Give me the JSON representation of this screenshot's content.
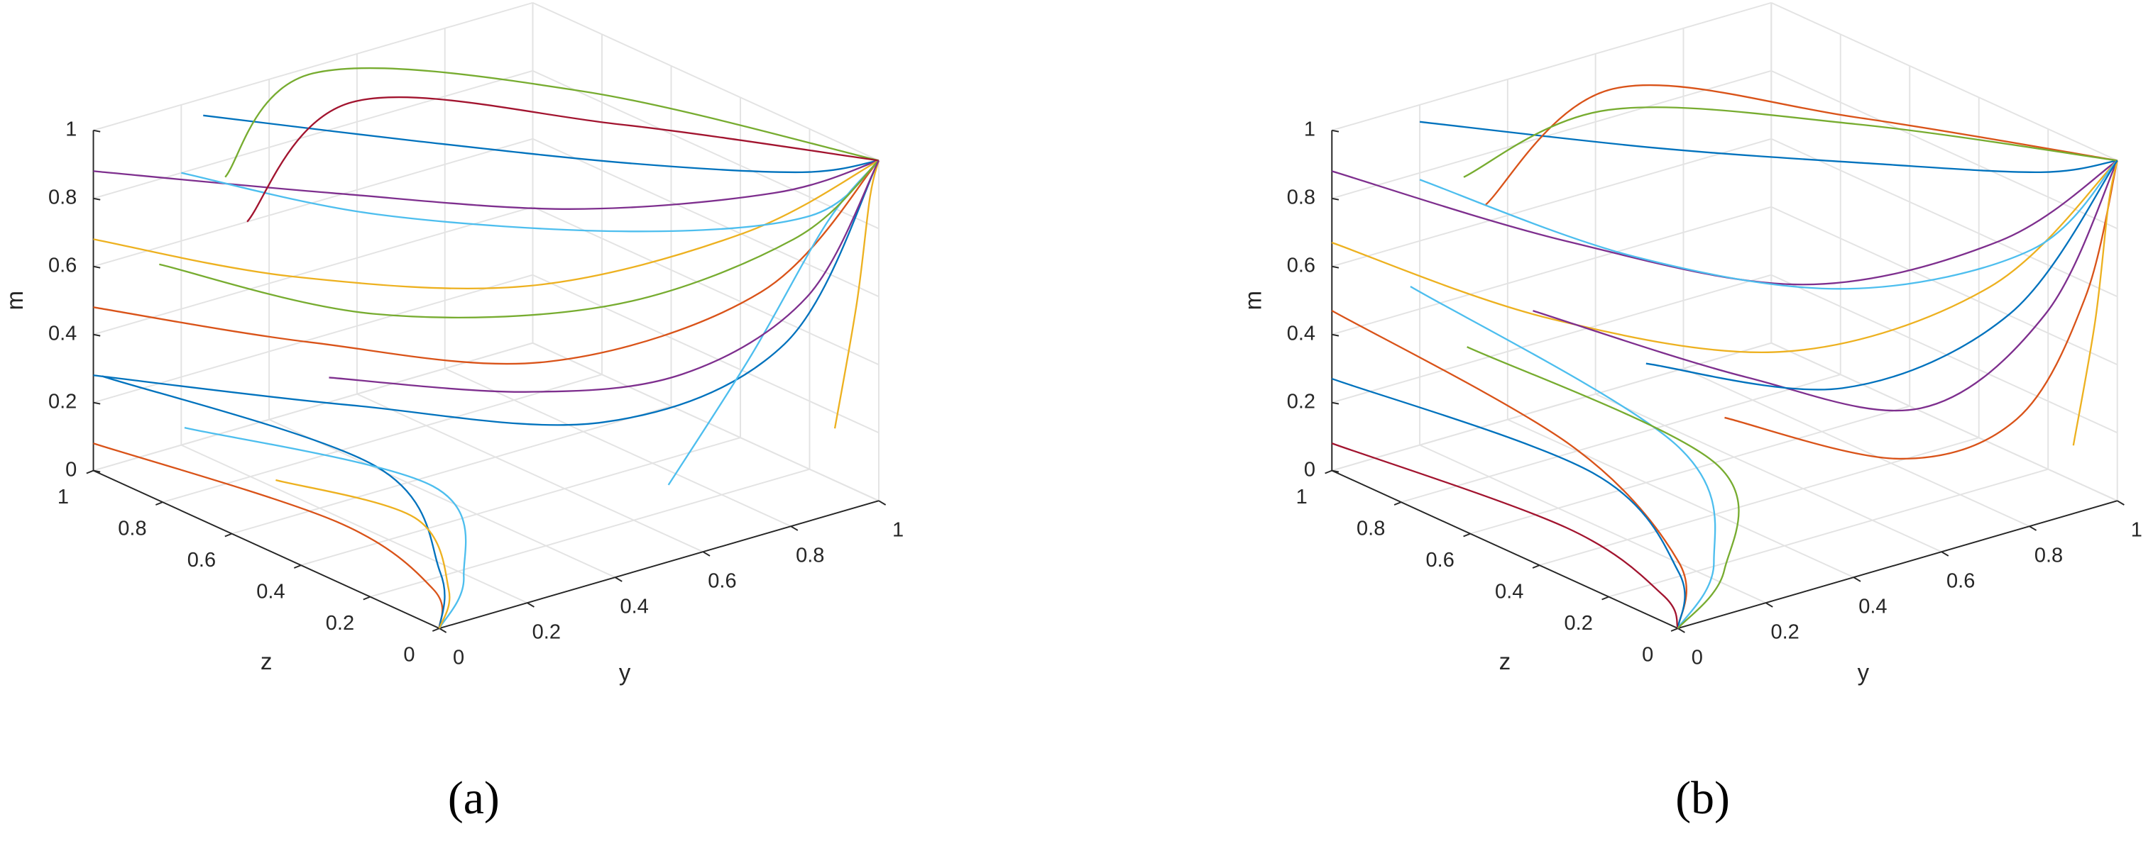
{
  "chart_data": [
    {
      "type": "line3d",
      "caption": "(a)",
      "grid": true,
      "ylabel": "y",
      "ylim": [
        0,
        1
      ],
      "yticks": [
        0,
        0.2,
        0.4,
        0.6,
        0.8,
        1
      ],
      "zlabel": "z",
      "zlim": [
        0,
        1
      ],
      "zticks": [
        0,
        0.2,
        0.4,
        0.6,
        0.8,
        1
      ],
      "mlabel": "m",
      "mlim": [
        0,
        1
      ],
      "mticks": [
        0,
        0.2,
        0.4,
        0.6,
        0.8,
        1
      ],
      "series": [
        {
          "color": "#0072BD",
          "y": [
            0.25,
            0.5,
            0.75,
            0.92,
            1
          ],
          "z": [
            1,
            0.7,
            0.4,
            0.12,
            0
          ],
          "m": [
            0.95,
            0.92,
            0.9,
            0.94,
            1
          ]
        },
        {
          "color": "#7E2F8E",
          "y": [
            0,
            0.35,
            0.65,
            0.88,
            1
          ],
          "z": [
            1,
            0.75,
            0.45,
            0.15,
            0
          ],
          "m": [
            0.88,
            0.8,
            0.78,
            0.88,
            1
          ]
        },
        {
          "color": "#EDB120",
          "y": [
            0,
            0.3,
            0.6,
            0.85,
            1
          ],
          "z": [
            1,
            0.8,
            0.5,
            0.2,
            0
          ],
          "m": [
            0.68,
            0.55,
            0.55,
            0.75,
            1
          ]
        },
        {
          "color": "#D95319",
          "y": [
            0,
            0.3,
            0.6,
            0.85,
            1
          ],
          "z": [
            1,
            0.75,
            0.45,
            0.15,
            0
          ],
          "m": [
            0.48,
            0.38,
            0.35,
            0.6,
            1
          ]
        },
        {
          "color": "#0072BD",
          "y": [
            0,
            0.35,
            0.65,
            0.88,
            1
          ],
          "z": [
            1,
            0.7,
            0.35,
            0.12,
            0
          ],
          "m": [
            0.28,
            0.2,
            0.2,
            0.45,
            1
          ]
        },
        {
          "color": "#4DBEEE",
          "y": [
            0.2,
            0.45,
            0.75,
            0.92,
            1
          ],
          "z": [
            1,
            0.75,
            0.4,
            0.1,
            0
          ],
          "m": [
            0.8,
            0.7,
            0.7,
            0.82,
            1
          ]
        },
        {
          "color": "#77AC30",
          "y": [
            0.3,
            0.5,
            0.8,
            1
          ],
          "z": [
            1,
            1,
            0.6,
            0
          ],
          "m": [
            0.75,
            0.98,
            1,
            1
          ]
        },
        {
          "color": "#A2142F",
          "y": [
            0.35,
            0.55,
            0.8,
            1
          ],
          "z": [
            1,
            0.95,
            0.5,
            0
          ],
          "m": [
            0.6,
            0.9,
            0.95,
            1
          ]
        },
        {
          "color": "#D95319",
          "y": [
            0,
            0.12,
            0.08,
            0
          ],
          "z": [
            1,
            0.45,
            0.12,
            0
          ],
          "m": [
            0.08,
            0.06,
            0.03,
            0
          ]
        },
        {
          "color": "#0072BD",
          "y": [
            0.02,
            0.25,
            0.12,
            0
          ],
          "z": [
            1,
            0.5,
            0.15,
            0
          ],
          "m": [
            0.27,
            0.15,
            0.05,
            0
          ]
        },
        {
          "color": "#4DBEEE",
          "y": [
            0.05,
            0.3,
            0.15,
            0
          ],
          "z": [
            0.8,
            0.4,
            0.12,
            0
          ],
          "m": [
            0.2,
            0.12,
            0.04,
            0
          ]
        },
        {
          "color": "#EDB120",
          "y": [
            0.1,
            0.22,
            0.1,
            0
          ],
          "z": [
            0.6,
            0.35,
            0.1,
            0
          ],
          "m": [
            0.12,
            0.08,
            0.03,
            0
          ]
        },
        {
          "color": "#4DBEEE",
          "y": [
            0.6,
            0.75,
            0.9,
            1
          ],
          "z": [
            0.1,
            0.05,
            0.02,
            0
          ],
          "m": [
            0.15,
            0.5,
            0.85,
            1
          ]
        },
        {
          "color": "#EDB120",
          "y": [
            0.9,
            0.95,
            0.98,
            1
          ],
          "z": [
            0,
            0,
            0,
            0
          ],
          "m": [
            0.25,
            0.6,
            0.9,
            1
          ]
        },
        {
          "color": "#77AC30",
          "y": [
            0.15,
            0.4,
            0.7,
            0.9,
            1
          ],
          "z": [
            1,
            0.7,
            0.4,
            0.12,
            0
          ],
          "m": [
            0.55,
            0.45,
            0.5,
            0.75,
            1
          ]
        },
        {
          "color": "#7E2F8E",
          "y": [
            0.3,
            0.55,
            0.75,
            0.9,
            1
          ],
          "z": [
            0.7,
            0.45,
            0.25,
            0.08,
            0
          ],
          "m": [
            0.3,
            0.28,
            0.35,
            0.6,
            1
          ]
        }
      ]
    },
    {
      "type": "line3d",
      "caption": "(b)",
      "grid": true,
      "ylabel": "y",
      "ylim": [
        0,
        1
      ],
      "yticks": [
        0,
        0.2,
        0.4,
        0.6,
        0.8,
        1
      ],
      "zlabel": "z",
      "zlim": [
        0,
        1
      ],
      "zticks": [
        0,
        0.2,
        0.4,
        0.6,
        0.8,
        1
      ],
      "mlabel": "m",
      "mlim": [
        0,
        1
      ],
      "mticks": [
        0,
        0.2,
        0.4,
        0.6,
        0.8,
        1
      ],
      "series": [
        {
          "color": "#0072BD",
          "y": [
            0.2,
            0.5,
            0.75,
            0.92,
            1
          ],
          "z": [
            1,
            0.7,
            0.4,
            0.12,
            0
          ],
          "m": [
            0.95,
            0.9,
            0.9,
            0.94,
            1
          ]
        },
        {
          "color": "#7E2F8E",
          "y": [
            0,
            0.3,
            0.6,
            0.85,
            1
          ],
          "z": [
            1,
            0.7,
            0.4,
            0.15,
            0
          ],
          "m": [
            0.88,
            0.7,
            0.6,
            0.75,
            1
          ]
        },
        {
          "color": "#EDB120",
          "y": [
            0,
            0.3,
            0.6,
            0.85,
            1
          ],
          "z": [
            1,
            0.75,
            0.45,
            0.18,
            0
          ],
          "m": [
            0.67,
            0.45,
            0.38,
            0.6,
            1
          ]
        },
        {
          "color": "#D95319",
          "y": [
            0,
            0.15,
            0.12,
            0
          ],
          "z": [
            1,
            0.5,
            0.15,
            0
          ],
          "m": [
            0.47,
            0.25,
            0.08,
            0
          ]
        },
        {
          "color": "#0072BD",
          "y": [
            0,
            0.2,
            0.12,
            0
          ],
          "z": [
            1,
            0.5,
            0.15,
            0
          ],
          "m": [
            0.27,
            0.15,
            0.05,
            0
          ]
        },
        {
          "color": "#A2142F",
          "y": [
            0,
            0.1,
            0.06,
            0
          ],
          "z": [
            1,
            0.45,
            0.12,
            0
          ],
          "m": [
            0.08,
            0.05,
            0.02,
            0
          ]
        },
        {
          "color": "#4DBEEE",
          "y": [
            0.1,
            0.35,
            0.2,
            0
          ],
          "z": [
            0.9,
            0.45,
            0.15,
            0
          ],
          "m": [
            0.55,
            0.2,
            0.05,
            0
          ]
        },
        {
          "color": "#77AC30",
          "y": [
            0.15,
            0.4,
            0.2,
            0
          ],
          "z": [
            0.8,
            0.4,
            0.12,
            0
          ],
          "m": [
            0.4,
            0.15,
            0.04,
            0
          ]
        },
        {
          "color": "#D95319",
          "y": [
            0.35,
            0.6,
            0.8,
            1
          ],
          "z": [
            1,
            0.95,
            0.5,
            0
          ],
          "m": [
            0.65,
            0.92,
            0.97,
            1
          ]
        },
        {
          "color": "#77AC30",
          "y": [
            0.3,
            0.55,
            0.8,
            1
          ],
          "z": [
            1,
            0.9,
            0.5,
            0
          ],
          "m": [
            0.75,
            0.9,
            0.95,
            1
          ]
        },
        {
          "color": "#4DBEEE",
          "y": [
            0.2,
            0.45,
            0.7,
            0.9,
            1
          ],
          "z": [
            1,
            0.7,
            0.4,
            0.12,
            0
          ],
          "m": [
            0.78,
            0.6,
            0.55,
            0.72,
            1
          ]
        },
        {
          "color": "#7E2F8E",
          "y": [
            0.3,
            0.55,
            0.75,
            0.9,
            1
          ],
          "z": [
            0.8,
            0.5,
            0.25,
            0.08,
            0
          ],
          "m": [
            0.45,
            0.3,
            0.25,
            0.55,
            1
          ]
        },
        {
          "color": "#D95319",
          "y": [
            0.5,
            0.7,
            0.85,
            0.95,
            1
          ],
          "z": [
            0.5,
            0.25,
            0.1,
            0.03,
            0
          ],
          "m": [
            0.2,
            0.12,
            0.25,
            0.6,
            1
          ]
        },
        {
          "color": "#EDB120",
          "y": [
            0.9,
            0.95,
            0.98,
            1
          ],
          "z": [
            0,
            0,
            0,
            0
          ],
          "m": [
            0.2,
            0.55,
            0.88,
            1
          ]
        },
        {
          "color": "#0072BD",
          "y": [
            0.4,
            0.65,
            0.85,
            1
          ],
          "z": [
            0.6,
            0.35,
            0.12,
            0
          ],
          "m": [
            0.35,
            0.3,
            0.55,
            1
          ]
        }
      ]
    }
  ]
}
